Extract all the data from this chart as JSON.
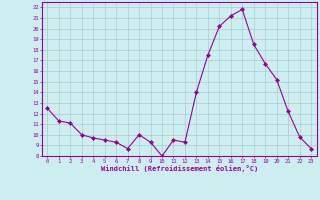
{
  "x": [
    0,
    1,
    2,
    3,
    4,
    5,
    6,
    7,
    8,
    9,
    10,
    11,
    12,
    13,
    14,
    15,
    16,
    17,
    18,
    19,
    20,
    21,
    22,
    23
  ],
  "y": [
    12.5,
    11.3,
    11.1,
    10.0,
    9.7,
    9.5,
    9.3,
    8.7,
    10.0,
    9.3,
    8.0,
    9.5,
    9.3,
    14.0,
    17.5,
    20.2,
    21.2,
    21.8,
    18.5,
    16.7,
    15.2,
    12.2,
    9.8,
    8.7
  ],
  "line_color": "#990099",
  "marker": "D",
  "marker_size": 2,
  "bg_color": "#cceeee",
  "grid_color": "#aacccc",
  "xlabel": "Windchill (Refroidissement éolien,°C)",
  "xlabel_color": "#990099",
  "tick_color": "#990099",
  "spine_color": "#990099",
  "ylim": [
    8,
    22.5
  ],
  "yticks": [
    8,
    9,
    10,
    11,
    12,
    13,
    14,
    15,
    16,
    17,
    18,
    19,
    20,
    21,
    22
  ],
  "xlim": [
    -0.5,
    23.5
  ],
  "xticks": [
    0,
    1,
    2,
    3,
    4,
    5,
    6,
    7,
    8,
    9,
    10,
    11,
    12,
    13,
    14,
    15,
    16,
    17,
    18,
    19,
    20,
    21,
    22,
    23
  ]
}
